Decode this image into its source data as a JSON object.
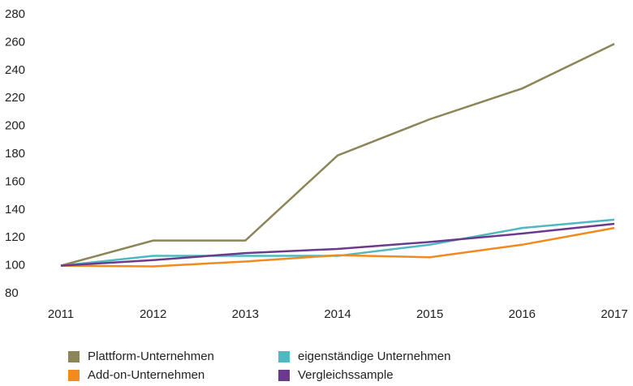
{
  "chart_data": {
    "type": "line",
    "categories": [
      "2011",
      "2012",
      "2013",
      "2014",
      "2015",
      "2016",
      "2017"
    ],
    "series": [
      {
        "name": "Plattform-Unternehmen",
        "color": "#8b8558",
        "values": [
          100,
          118,
          118,
          179,
          205,
          227,
          259
        ]
      },
      {
        "name": "eigenständige Unternehmen",
        "color": "#4fb8c0",
        "values": [
          100,
          107,
          107,
          107,
          115,
          127,
          133
        ]
      },
      {
        "name": "Add-on-Unternehmen",
        "color": "#f28a1e",
        "values": [
          100,
          99.5,
          103,
          107.5,
          106,
          115,
          127
        ]
      },
      {
        "name": "Vergleichssample",
        "color": "#6b3a8c",
        "values": [
          100,
          104,
          109,
          112,
          117,
          123,
          130
        ]
      }
    ],
    "ylim": [
      80,
      280
    ],
    "yticks": [
      80,
      100,
      120,
      140,
      160,
      180,
      200,
      220,
      240,
      260,
      280
    ],
    "grid": false,
    "legend": "bottom"
  }
}
